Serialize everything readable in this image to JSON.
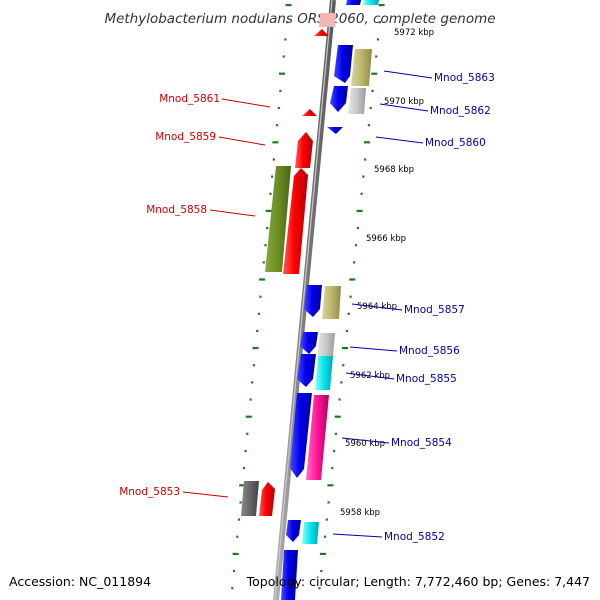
{
  "title": "Methylobacterium nodulans ORS 2060, complete genome",
  "accession": "Accession: NC_011894",
  "topology": "Topology: circular; Length: 7,772,460 bp; Genes: 7,447",
  "colors": {
    "forward_label": "#cc0000",
    "reverse_label": "#0000aa",
    "backbone": "#808080",
    "tick_ring": "#1f7a1f"
  },
  "ticks": [
    {
      "label": "5972 kbp"
    },
    {
      "label": "5970 kbp"
    },
    {
      "label": "5968 kbp"
    },
    {
      "label": "5966 kbp"
    },
    {
      "label": "5964 kbp"
    },
    {
      "label": "5962 kbp"
    },
    {
      "label": "5960 kbp"
    },
    {
      "label": "5958 kbp"
    }
  ],
  "genes_forward": [
    {
      "label": "Mnod_5861"
    },
    {
      "label": "Mnod_5859"
    },
    {
      "label": "Mnod_5858"
    },
    {
      "label": "Mnod_5853"
    }
  ],
  "genes_reverse": [
    {
      "label": "Mnod_5863"
    },
    {
      "label": "Mnod_5862"
    },
    {
      "label": "Mnod_5860"
    },
    {
      "label": "Mnod_5857"
    },
    {
      "label": "Mnod_5856"
    },
    {
      "label": "Mnod_5855"
    },
    {
      "label": "Mnod_5854"
    },
    {
      "label": "Mnod_5852"
    }
  ]
}
